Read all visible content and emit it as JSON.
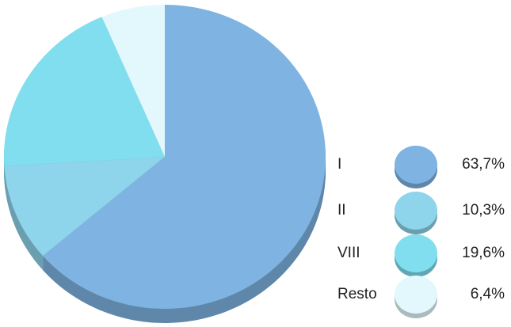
{
  "chart_data": {
    "type": "pie",
    "categories": [
      "I",
      "II",
      "VIII",
      "Resto"
    ],
    "values": [
      63.7,
      10.3,
      19.6,
      6.4
    ],
    "value_labels": [
      "63,7%",
      "10,3%",
      "19,6%",
      "6,4%"
    ],
    "colors": [
      "#7fb4e2",
      "#8ed4ea",
      "#80deee",
      "#e2f8fc"
    ]
  }
}
